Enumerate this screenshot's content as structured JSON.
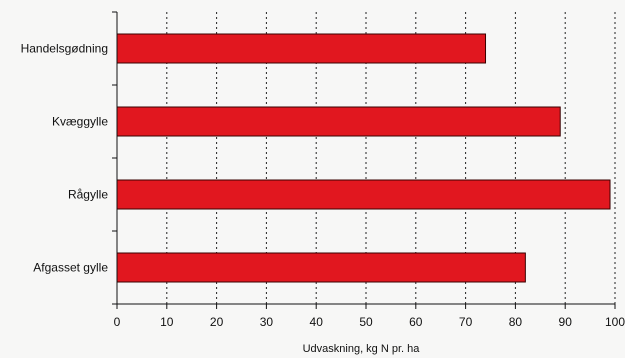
{
  "chart_data": {
    "type": "bar",
    "orientation": "horizontal",
    "categories": [
      "Handelsgødning",
      "Kvæggylle",
      "Rågylle",
      "Afgasset gylle"
    ],
    "values": [
      74,
      89,
      99,
      82
    ],
    "xlabel": "Udvaskning, kg N pr. ha",
    "xlim": [
      0,
      100
    ],
    "xticks": [
      "0",
      "10",
      "20",
      "30",
      "40",
      "50",
      "60",
      "70",
      "80",
      "90",
      "100"
    ],
    "grid": "vertical dotted",
    "legend": "none",
    "colors": {
      "bar": "#e1171f",
      "bar_edge": "#3a0000",
      "grid": "#222222",
      "axis": "#111111",
      "background": "#f7f7f6"
    }
  }
}
